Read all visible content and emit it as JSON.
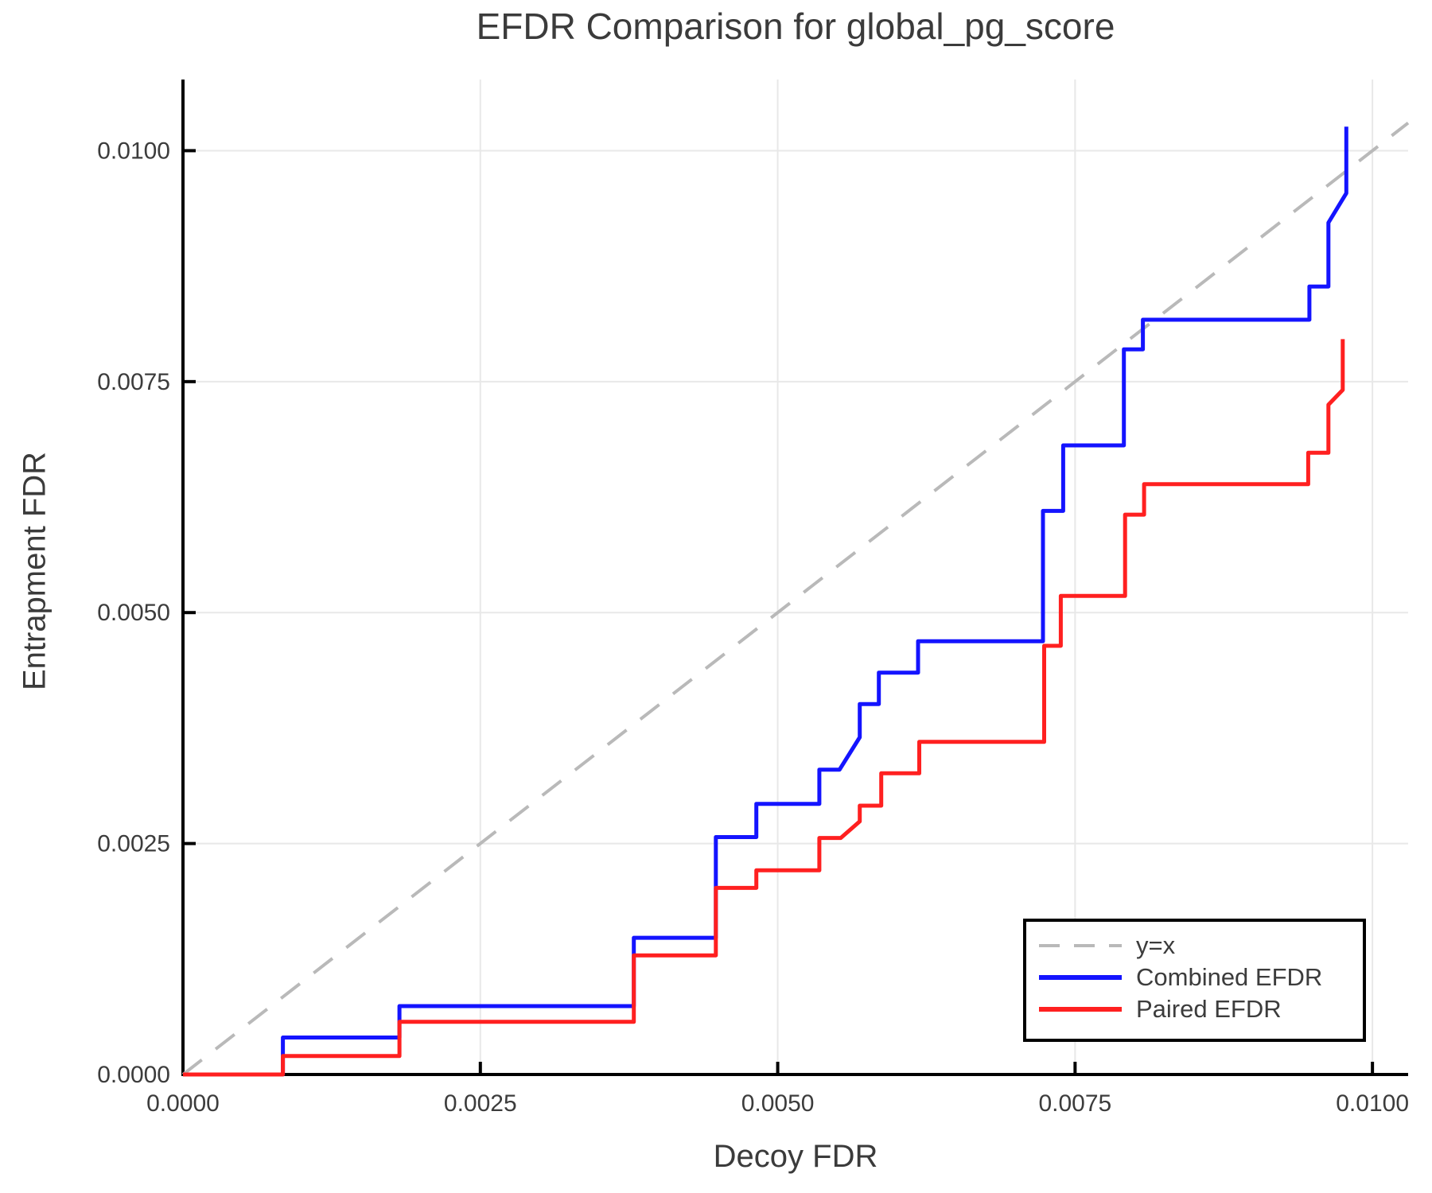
{
  "chart_data": {
    "type": "line",
    "title": "EFDR Comparison for global_pg_score",
    "xlabel": "Decoy FDR",
    "ylabel": "Entrapment FDR",
    "xlim": [
      0,
      0.0103
    ],
    "ylim": [
      0,
      0.01077
    ],
    "grid": true,
    "legend_position": "bottom-right",
    "xticks": [
      0,
      0.0025,
      0.005,
      0.0075,
      0.01
    ],
    "xtick_labels": [
      "0.0000",
      "0.0025",
      "0.0050",
      "0.0075",
      "0.0100"
    ],
    "yticks": [
      0,
      0.0025,
      0.005,
      0.0075,
      0.01
    ],
    "ytick_labels": [
      "0.0000",
      "0.0025",
      "0.0050",
      "0.0075",
      "0.0100"
    ],
    "series": [
      {
        "name": "y=x",
        "color": "#b9b9b9",
        "dashed": true,
        "line_width": 4,
        "points": [
          [
            0,
            0
          ],
          [
            0.0103,
            0.0103
          ]
        ]
      },
      {
        "name": "Combined EFDR",
        "color": "#1414ff",
        "dashed": false,
        "line_width": 5,
        "points": [
          [
            0.0,
            0.0
          ],
          [
            0.00084,
            0.0
          ],
          [
            0.00084,
            0.0004
          ],
          [
            0.00182,
            0.0004
          ],
          [
            0.00182,
            0.00074
          ],
          [
            0.00379,
            0.00074
          ],
          [
            0.00379,
            0.00148
          ],
          [
            0.00448,
            0.00148
          ],
          [
            0.00448,
            0.00257
          ],
          [
            0.00482,
            0.00257
          ],
          [
            0.00482,
            0.00293
          ],
          [
            0.00535,
            0.00293
          ],
          [
            0.00535,
            0.0033
          ],
          [
            0.00552,
            0.0033
          ],
          [
            0.00569,
            0.00365
          ],
          [
            0.00569,
            0.00401
          ],
          [
            0.00585,
            0.00401
          ],
          [
            0.00585,
            0.00435
          ],
          [
            0.00618,
            0.00435
          ],
          [
            0.00618,
            0.00469
          ],
          [
            0.00723,
            0.00469
          ],
          [
            0.00723,
            0.0061
          ],
          [
            0.0074,
            0.0061
          ],
          [
            0.0074,
            0.00681
          ],
          [
            0.00791,
            0.00681
          ],
          [
            0.00791,
            0.00785
          ],
          [
            0.00807,
            0.00785
          ],
          [
            0.00807,
            0.00817
          ],
          [
            0.00947,
            0.00817
          ],
          [
            0.00947,
            0.00853
          ],
          [
            0.00963,
            0.00853
          ],
          [
            0.00963,
            0.00922
          ],
          [
            0.00978,
            0.00954
          ],
          [
            0.00978,
            0.01026
          ]
        ]
      },
      {
        "name": "Paired EFDR",
        "color": "#ff2020",
        "dashed": false,
        "line_width": 5,
        "points": [
          [
            0.0,
            0.0
          ],
          [
            0.00084,
            0.0
          ],
          [
            0.00084,
            0.0002
          ],
          [
            0.00182,
            0.0002
          ],
          [
            0.00182,
            0.00057
          ],
          [
            0.00379,
            0.00057
          ],
          [
            0.00379,
            0.00129
          ],
          [
            0.00448,
            0.00129
          ],
          [
            0.00448,
            0.00202
          ],
          [
            0.00482,
            0.00202
          ],
          [
            0.00482,
            0.00221
          ],
          [
            0.00535,
            0.00221
          ],
          [
            0.00535,
            0.00256
          ],
          [
            0.00553,
            0.00256
          ],
          [
            0.00569,
            0.00274
          ],
          [
            0.00569,
            0.00291
          ],
          [
            0.00587,
            0.00291
          ],
          [
            0.00587,
            0.00326
          ],
          [
            0.00619,
            0.00326
          ],
          [
            0.00619,
            0.0036
          ],
          [
            0.00724,
            0.0036
          ],
          [
            0.00724,
            0.00464
          ],
          [
            0.00738,
            0.00464
          ],
          [
            0.00738,
            0.00518
          ],
          [
            0.00792,
            0.00518
          ],
          [
            0.00792,
            0.00606
          ],
          [
            0.00808,
            0.00606
          ],
          [
            0.00808,
            0.00639
          ],
          [
            0.00946,
            0.00639
          ],
          [
            0.00946,
            0.00673
          ],
          [
            0.00963,
            0.00673
          ],
          [
            0.00963,
            0.00725
          ],
          [
            0.00975,
            0.00741
          ],
          [
            0.00975,
            0.00796
          ]
        ]
      }
    ],
    "colors": {
      "title_text": "#3b3b3b",
      "tick_text": "#3c3c3c",
      "grid": "#e8e8e8",
      "spine": "#000000",
      "background": "#ffffff"
    }
  }
}
